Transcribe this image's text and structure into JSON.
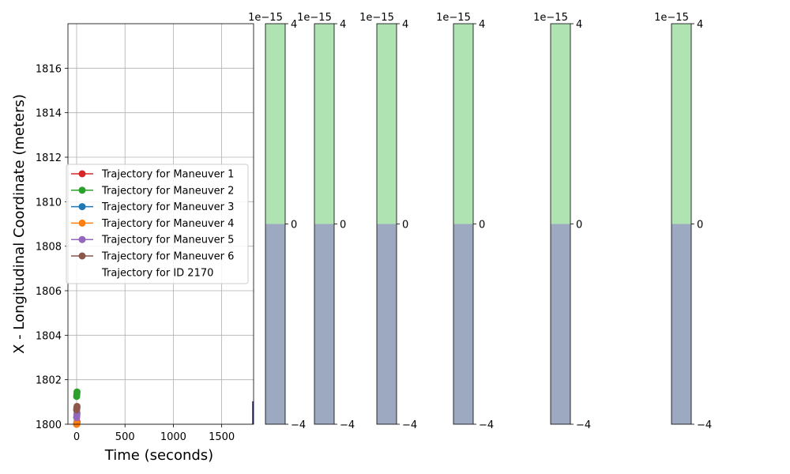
{
  "chart_data": [
    {
      "type": "line",
      "title": "",
      "xlabel": "Time (seconds)",
      "ylabel": "X - Longitudinal Coordinate (meters)",
      "xlim": [
        -90,
        1830
      ],
      "ylim": [
        1800,
        1818
      ],
      "xticks": [
        {
          "value": 0,
          "label": "0"
        },
        {
          "value": 500,
          "label": "500"
        },
        {
          "value": 1000,
          "label": "1000"
        },
        {
          "value": 1500,
          "label": "1500"
        }
      ],
      "yticks": [
        {
          "value": 1800,
          "label": "1800"
        },
        {
          "value": 1802,
          "label": "1802"
        },
        {
          "value": 1804,
          "label": "1804"
        },
        {
          "value": 1806,
          "label": "1806"
        },
        {
          "value": 1808,
          "label": "1808"
        },
        {
          "value": 1810,
          "label": "1810"
        },
        {
          "value": 1812,
          "label": "1812"
        },
        {
          "value": 1814,
          "label": "1814"
        },
        {
          "value": 1816,
          "label": "1816"
        }
      ],
      "grid": true,
      "legend_position": "center-left",
      "series": [
        {
          "name": "Trajectory for Maneuver 1",
          "color": "#d62728",
          "marker": "circle",
          "x": [
            0,
            2,
            4
          ],
          "y": [
            1800.0,
            1800.05,
            1800.1
          ]
        },
        {
          "name": "Trajectory for Maneuver 2",
          "color": "#2ca02c",
          "marker": "circle",
          "x": [
            0,
            2,
            4
          ],
          "y": [
            1801.25,
            1801.35,
            1801.45
          ]
        },
        {
          "name": "Trajectory for Maneuver 3",
          "color": "#1f77b4",
          "marker": "circle",
          "x": [
            0,
            2
          ],
          "y": [
            1800.0,
            1800.05
          ]
        },
        {
          "name": "Trajectory for Maneuver 4",
          "color": "#ff7f0e",
          "marker": "circle",
          "x": [
            0,
            2
          ],
          "y": [
            1800.0,
            1800.05
          ]
        },
        {
          "name": "Trajectory for Maneuver 5",
          "color": "#9467bd",
          "marker": "circle",
          "x": [
            0,
            2,
            4
          ],
          "y": [
            1800.3,
            1800.4,
            1800.5
          ]
        },
        {
          "name": "Trajectory for Maneuver 6",
          "color": "#8c564b",
          "marker": "circle",
          "x": [
            0,
            2,
            4
          ],
          "y": [
            1800.65,
            1800.72,
            1800.8
          ]
        },
        {
          "name": "Trajectory for ID 2170",
          "color": "#ffffff",
          "marker": "none",
          "x": [],
          "y": []
        }
      ]
    },
    {
      "type": "colorbar",
      "scale_label": "1e−15",
      "range": [
        -4,
        4
      ],
      "ticks": [
        {
          "value": 4,
          "label": "4"
        },
        {
          "value": 0,
          "label": "0"
        },
        {
          "value": -4,
          "label": "−4"
        }
      ],
      "segments": [
        {
          "from": 0,
          "to": 4,
          "color": "#b0e3b2"
        },
        {
          "from": -4,
          "to": 0,
          "color": "#9da8c1"
        }
      ],
      "count": 6
    }
  ]
}
